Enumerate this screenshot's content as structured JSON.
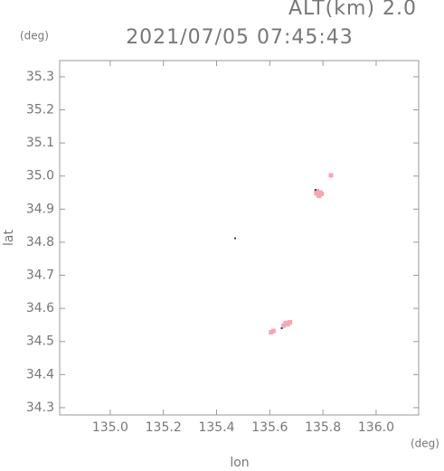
{
  "chart_data": {
    "type": "scatter",
    "title": "2021/07/05 07:45:43",
    "subtitle": "ALT(km) 2.0",
    "y_unit": "(deg)",
    "x_unit": "(deg)",
    "x_label": "lon",
    "y_label": "lat",
    "xlim": [
      134.81,
      136.16
    ],
    "ylim": [
      34.278,
      35.349
    ],
    "xticks": [
      {
        "value": 135.0,
        "label": "135.0"
      },
      135.2,
      135.4,
      135.6,
      135.8,
      {
        "value": 136.0,
        "label": "136.0"
      }
    ],
    "yticks": [
      34.3,
      34.4,
      34.5,
      34.6,
      34.7,
      34.8,
      34.9,
      {
        "value": 35.0,
        "label": "35.0"
      },
      35.1,
      35.2,
      35.3
    ],
    "series": [
      {
        "color": "#f4a8b4",
        "x": [
          135.775,
          135.782,
          135.79,
          135.786,
          135.778,
          135.795,
          135.83,
          135.66,
          135.668,
          135.676,
          135.652,
          135.605,
          135.614
        ],
        "y": [
          34.948,
          34.944,
          34.95,
          34.94,
          34.954,
          34.946,
          35.002,
          34.556,
          34.552,
          34.558,
          34.548,
          34.528,
          34.532
        ]
      },
      {
        "color": "#333366",
        "x": [
          135.772,
          135.47,
          135.645
        ],
        "y": [
          34.958,
          34.812,
          34.54
        ]
      }
    ]
  }
}
